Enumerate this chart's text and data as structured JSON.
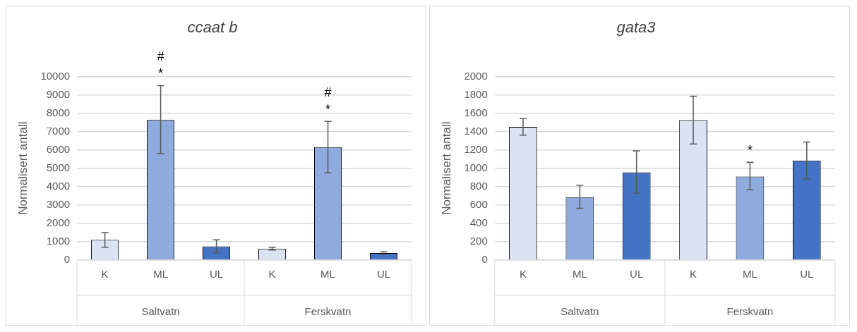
{
  "chart_data": [
    {
      "type": "bar",
      "title": "ccaat b",
      "ylabel": "Normalisert antall",
      "categories": [
        "K",
        "ML",
        "UL",
        "K",
        "ML",
        "UL"
      ],
      "values": [
        1100,
        7650,
        750,
        620,
        6150,
        380
      ],
      "errors": [
        [
          700,
          1500
        ],
        [
          5800,
          9500
        ],
        [
          400,
          1100
        ],
        [
          550,
          700
        ],
        [
          4750,
          7550
        ],
        [
          320,
          450
        ]
      ],
      "value_labels": [
        null,
        "#\n*",
        null,
        null,
        "#\n*",
        null
      ],
      "colors": [
        "#dae3f3",
        "#8faadc",
        "#4472c4",
        "#dae3f3",
        "#8faadc",
        "#4472c4"
      ],
      "ylim": [
        0,
        10000
      ],
      "yticks": [
        0,
        1000,
        2000,
        3000,
        4000,
        5000,
        6000,
        7000,
        8000,
        9000,
        10000
      ],
      "grid": "y",
      "annotations": [
        "Saltvatn",
        "Ferskvatn"
      ]
    },
    {
      "type": "bar",
      "title": "gata3",
      "ylabel": "Normalisert antall",
      "categories": [
        "K",
        "ML",
        "UL",
        "K",
        "ML",
        "UL"
      ],
      "values": [
        1450,
        685,
        955,
        1525,
        910,
        1085
      ],
      "errors": [
        [
          1360,
          1540
        ],
        [
          565,
          815
        ],
        [
          730,
          1190
        ],
        [
          1265,
          1785
        ],
        [
          765,
          1065
        ],
        [
          885,
          1285
        ]
      ],
      "value_labels": [
        null,
        null,
        null,
        null,
        "*",
        null
      ],
      "colors": [
        "#dae3f3",
        "#8faadc",
        "#4472c4",
        "#dae3f3",
        "#8faadc",
        "#4472c4"
      ],
      "ylim": [
        0,
        2000
      ],
      "yticks": [
        0,
        200,
        400,
        600,
        800,
        1000,
        1200,
        1400,
        1600,
        1800,
        2000
      ],
      "grid": "y",
      "annotations": [
        "Saltvatn",
        "Ferskvatn"
      ]
    }
  ]
}
